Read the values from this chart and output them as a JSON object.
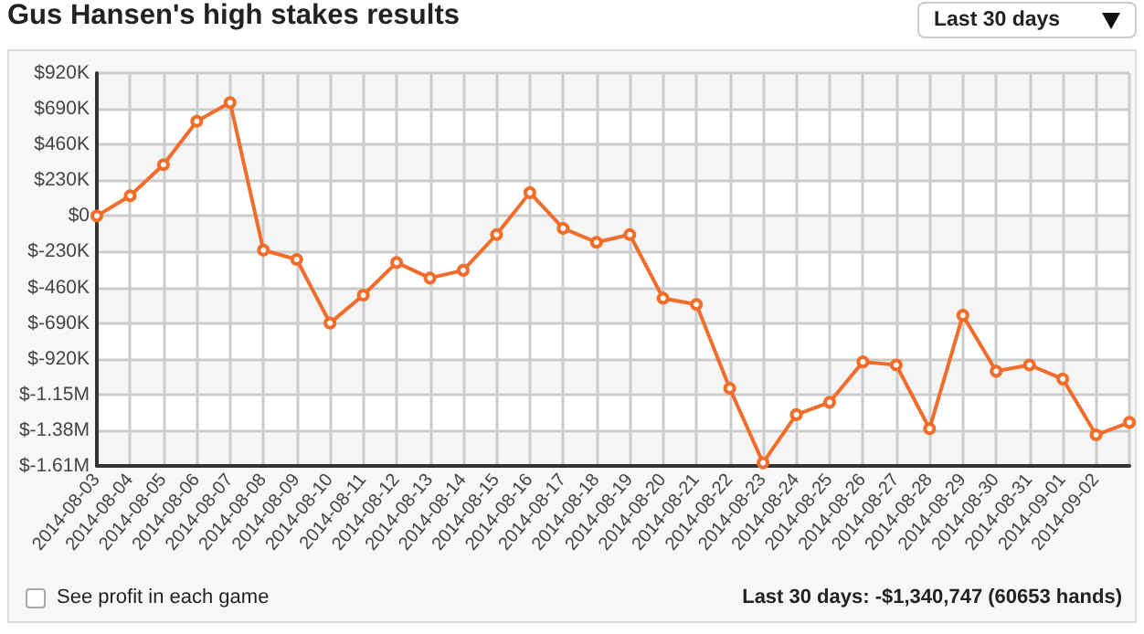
{
  "chart_data": {
    "type": "line",
    "title": "Gus Hansen's high stakes results",
    "annotations": [
      "Last 30 days",
      "See profit in each game",
      "Last 30 days: -$1,340,747 (60653 hands)"
    ],
    "categories": [
      "2014-08-03",
      "2014-08-04",
      "2014-08-05",
      "2014-08-06",
      "2014-08-07",
      "2014-08-08",
      "2014-08-09",
      "2014-08-10",
      "2014-08-11",
      "2014-08-12",
      "2014-08-13",
      "2014-08-14",
      "2014-08-15",
      "2014-08-16",
      "2014-08-17",
      "2014-08-18",
      "2014-08-19",
      "2014-08-20",
      "2014-08-21",
      "2014-08-22",
      "2014-08-23",
      "2014-08-24",
      "2014-08-25",
      "2014-08-26",
      "2014-08-27",
      "2014-08-28",
      "2014-08-29",
      "2014-08-30",
      "2014-08-31",
      "2014-09-01",
      "2014-09-02",
      null
    ],
    "series": [
      {
        "color": "#f26c2a",
        "values": [
          0,
          130000,
          330000,
          610000,
          730000,
          -220000,
          -280000,
          -690000,
          -510000,
          -300000,
          -400000,
          -350000,
          -120000,
          150000,
          -80000,
          -170000,
          -120000,
          -530000,
          -570000,
          -1110000,
          -1590000,
          -1280000,
          -1200000,
          -940000,
          -960000,
          -1370000,
          -640000,
          -1000000,
          -960000,
          -1050000,
          -1410000,
          -1330000
        ]
      }
    ],
    "ylim": [
      -1610000,
      920000
    ],
    "yticks": [
      {
        "value": 920000,
        "label": "$920K"
      },
      {
        "value": 690000,
        "label": "$690K"
      },
      {
        "value": 460000,
        "label": "$460K"
      },
      {
        "value": 230000,
        "label": "$230K"
      },
      {
        "value": 0,
        "label": "$0"
      },
      {
        "value": -230000,
        "label": "$-230K"
      },
      {
        "value": -460000,
        "label": "$-460K"
      },
      {
        "value": -690000,
        "label": "$-690K"
      },
      {
        "value": -920000,
        "label": "$-920K"
      },
      {
        "value": -1150000,
        "label": "$-1.15M"
      },
      {
        "value": -1380000,
        "label": "$-1.38M"
      },
      {
        "value": -1610000,
        "label": "$-1.61M"
      }
    ],
    "grid": true,
    "marker": "circle",
    "line_style": "solid"
  }
}
